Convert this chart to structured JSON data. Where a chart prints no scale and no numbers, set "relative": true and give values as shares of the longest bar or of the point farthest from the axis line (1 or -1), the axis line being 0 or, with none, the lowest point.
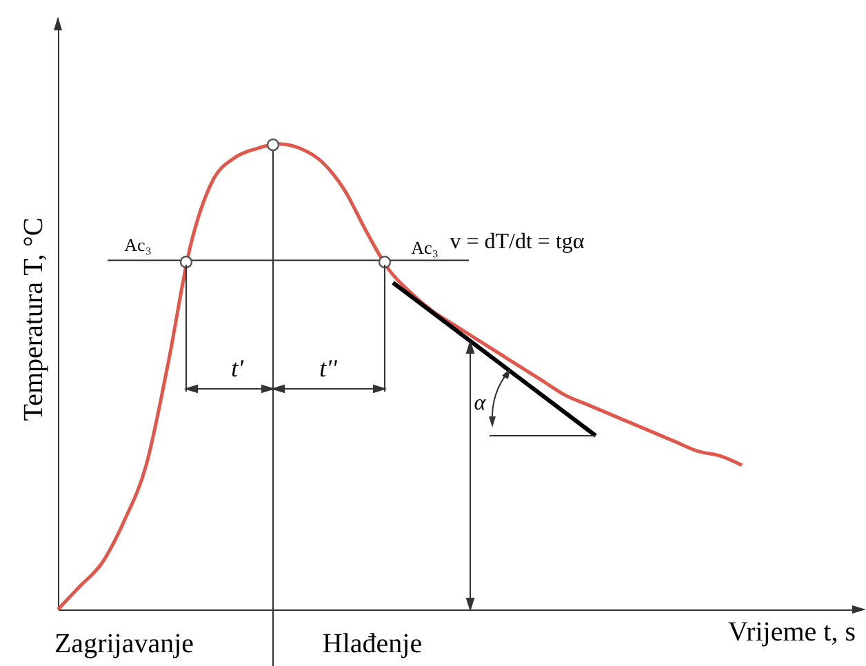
{
  "chart_data": {
    "type": "line",
    "relative": true,
    "xlabel": "Vrijeme t, s",
    "ylabel": "Temperatura T, °C",
    "categories": [
      null,
      null,
      null,
      null,
      null,
      null,
      null,
      null,
      null,
      null,
      null,
      null,
      null,
      null,
      null,
      null,
      null,
      null,
      null,
      null,
      null,
      null,
      null,
      null,
      null,
      null,
      null,
      null,
      null,
      null,
      null,
      null
    ],
    "series": [
      {
        "color": "#e0574c",
        "values": [
          0,
          0.05,
          0.1,
          0.19,
          0.31,
          0.53,
          0.78,
          0.92,
          0.97,
          0.99,
          1,
          0.99,
          0.96,
          0.9,
          0.81,
          0.73,
          0.68,
          0.64,
          0.61,
          0.58,
          0.55,
          0.52,
          0.49,
          0.46,
          0.44,
          0.42,
          0.4,
          0.38,
          0.36,
          0.34,
          0.33,
          0.31
        ]
      }
    ],
    "ref_lines": [
      {
        "axis": "y",
        "value": 0.75,
        "label": "Ac₃"
      }
    ],
    "annotations": [
      "v = dT/dt = tgα",
      "t'",
      "t''",
      "α",
      "Zagrijavanje",
      "Hlađenje",
      "Ac₃"
    ]
  }
}
